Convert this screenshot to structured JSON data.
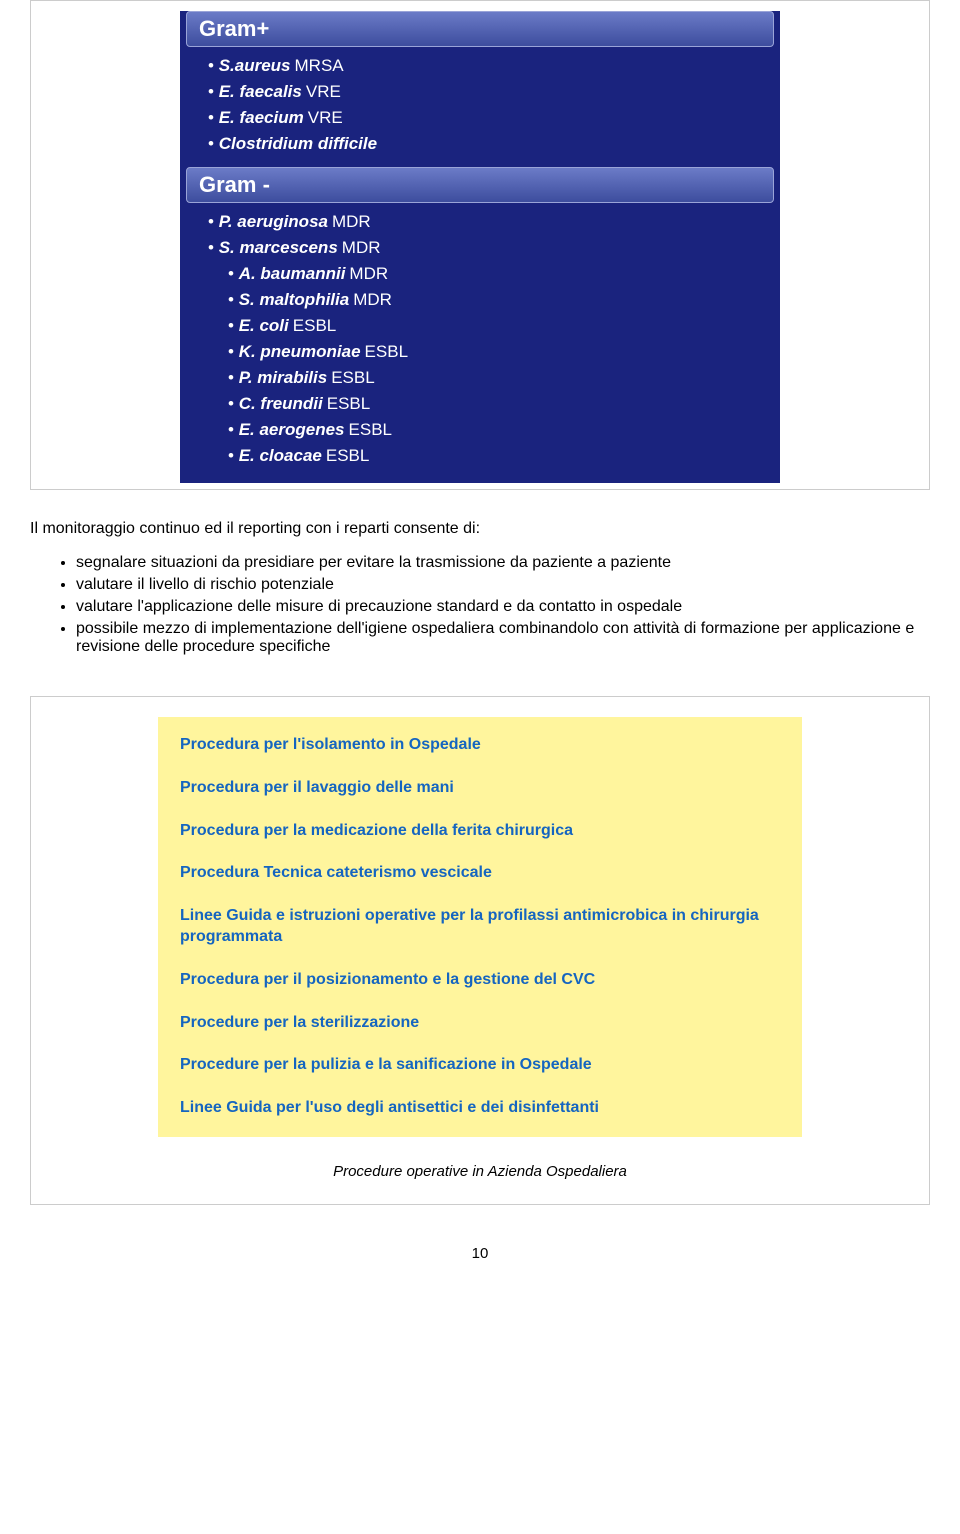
{
  "gram_panels": [
    {
      "title": "Gram+",
      "items": [
        {
          "name": "S.aureus",
          "tag": "MRSA",
          "indent": 0
        },
        {
          "name": "E. faecalis",
          "tag": "VRE",
          "indent": 0
        },
        {
          "name": "E. faecium",
          "tag": "VRE",
          "indent": 0
        },
        {
          "name": "Clostridium difficile",
          "tag": "",
          "indent": 0
        }
      ]
    },
    {
      "title": "Gram -",
      "items": [
        {
          "name": "P. aeruginosa",
          "tag": "MDR",
          "indent": 0
        },
        {
          "name": "S. marcescens",
          "tag": "MDR",
          "indent": 0
        },
        {
          "name": "A. baumannii",
          "tag": "MDR",
          "indent": 1
        },
        {
          "name": "S. maltophilia",
          "tag": "MDR",
          "indent": 1
        },
        {
          "name": "E. coli",
          "tag": "ESBL",
          "indent": 1
        },
        {
          "name": "K. pneumoniae",
          "tag": "ESBL",
          "indent": 1
        },
        {
          "name": "P. mirabilis",
          "tag": "ESBL",
          "indent": 1
        },
        {
          "name": "C. freundii",
          "tag": "ESBL",
          "indent": 1
        },
        {
          "name": "E. aerogenes",
          "tag": "ESBL",
          "indent": 1
        },
        {
          "name": "E. cloacae",
          "tag": "ESBL",
          "indent": 1
        }
      ]
    }
  ],
  "intro_text": "Il monitoraggio continuo ed il reporting con i reparti consente di:",
  "bullet_points": [
    "segnalare situazioni da presidiare per evitare la trasmissione da paziente a paziente",
    "valutare il livello di rischio potenziale",
    "valutare l'applicazione delle misure di precauzione standard e da contatto in ospedale",
    "possibile mezzo di implementazione dell'igiene ospedaliera combinandolo con attività di formazione per applicazione e revisione delle procedure specifiche"
  ],
  "procedures": [
    "Procedura per l'isolamento in Ospedale",
    "Procedura per il lavaggio delle mani",
    "Procedura per la medicazione della ferita chirurgica",
    "Procedura Tecnica cateterismo vescicale",
    "Linee Guida e istruzioni operative per la profilassi antimicrobica in chirurgia programmata",
    "Procedura per il posizionamento e la gestione del CVC",
    "Procedure per la sterilizzazione",
    "Procedure per la pulizia e la sanificazione in Ospedale",
    "Linee Guida per l'uso degli antisettici e dei disinfettanti"
  ],
  "procedures_caption": "Procedure operative in Azienda Ospedaliera",
  "page_number": "10",
  "colors": {
    "gram_bg": "#1a237e",
    "gram_header_grad_top": "#6b7bc7",
    "gram_header_grad_bottom": "#3d4d9e",
    "proc_bg": "#fff59d",
    "proc_text": "#1565c0",
    "box_border": "#cccccc"
  }
}
